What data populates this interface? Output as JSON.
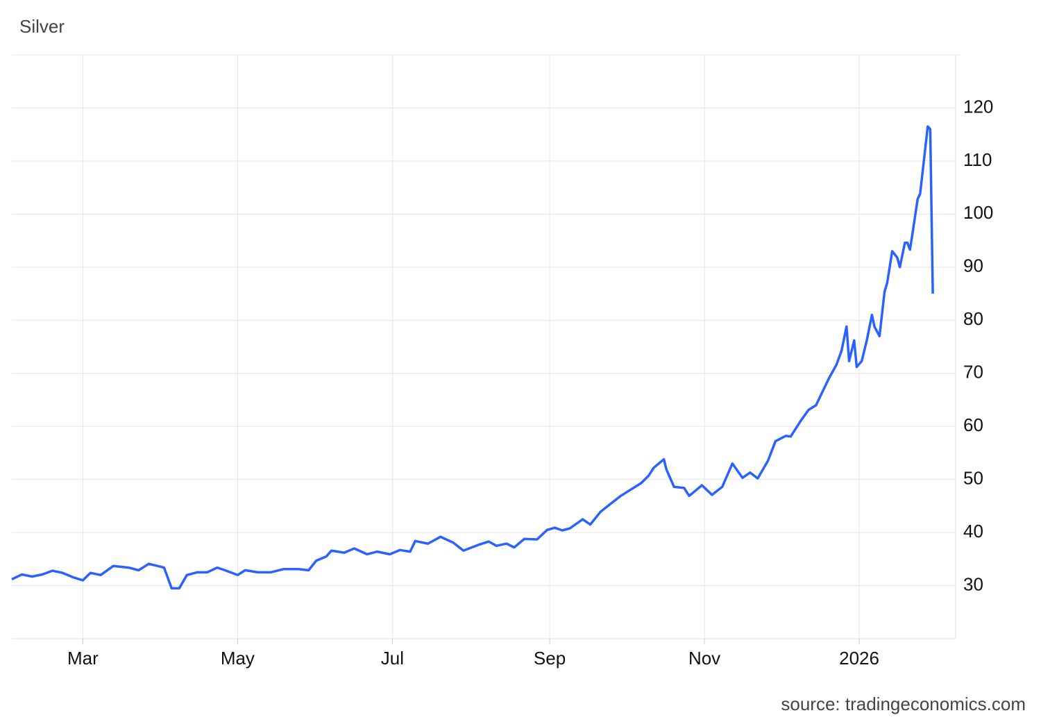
{
  "chart_data": {
    "type": "line",
    "title": "Silver",
    "source": "source: tradingeconomics.com",
    "x": [
      0,
      4,
      8,
      12,
      16,
      20,
      24,
      28,
      31,
      35,
      40,
      46,
      50,
      54,
      60,
      63,
      66,
      69,
      73,
      77,
      81,
      84,
      89,
      92,
      97,
      102,
      107,
      113,
      117,
      120,
      124,
      126,
      131,
      135,
      140,
      144,
      149,
      153,
      157,
      159,
      164,
      169,
      174,
      178,
      184,
      188,
      191,
      195,
      198,
      202,
      207,
      211,
      214,
      217,
      220,
      225,
      228,
      232,
      236,
      240,
      244,
      248,
      251,
      253,
      257,
      258,
      261,
      265,
      267,
      272,
      276,
      280,
      284,
      288,
      291,
      294,
      298,
      301,
      305,
      307,
      311,
      314,
      317,
      319,
      322,
      325,
      327,
      329,
      330,
      332,
      333,
      335,
      337,
      339,
      340,
      342,
      344,
      345,
      347,
      349,
      350,
      352,
      353,
      354,
      355,
      357,
      358,
      360,
      361,
      362,
      363
    ],
    "series": [
      {
        "name": "Silver",
        "color": "#2962ff",
        "values": [
          31.2,
          32.1,
          31.7,
          32.1,
          32.8,
          32.4,
          31.6,
          31.0,
          32.4,
          32.0,
          33.7,
          33.4,
          32.9,
          34.1,
          33.4,
          29.5,
          29.5,
          32.0,
          32.5,
          32.5,
          33.4,
          32.9,
          32.0,
          32.9,
          32.5,
          32.5,
          33.1,
          33.1,
          32.9,
          34.7,
          35.5,
          36.6,
          36.2,
          37.0,
          35.9,
          36.4,
          35.9,
          36.7,
          36.4,
          38.4,
          37.9,
          39.2,
          38.1,
          36.6,
          37.7,
          38.3,
          37.5,
          37.9,
          37.2,
          38.8,
          38.7,
          40.5,
          40.9,
          40.4,
          40.8,
          42.5,
          41.5,
          43.9,
          45.4,
          46.9,
          48.1,
          49.3,
          50.7,
          52.2,
          53.8,
          51.9,
          48.6,
          48.4,
          46.9,
          48.9,
          47.1,
          48.6,
          53.0,
          50.3,
          51.3,
          50.2,
          53.5,
          57.2,
          58.2,
          58.1,
          61.1,
          63.1,
          64.0,
          66.0,
          69.0,
          71.6,
          74.2,
          78.8,
          72.3,
          76.2,
          71.2,
          72.3,
          76.2,
          81.0,
          78.8,
          77.0,
          85.4,
          87.0,
          93.0,
          91.8,
          90.0,
          94.6,
          94.6,
          93.3,
          96.3,
          102.8,
          103.8,
          112.2,
          116.5,
          116.0,
          85.0
        ]
      }
    ],
    "xlim": [
      0,
      372
    ],
    "xticks": [
      {
        "value": 28,
        "label": "Mar"
      },
      {
        "value": 89,
        "label": "May"
      },
      {
        "value": 150,
        "label": "Jul"
      },
      {
        "value": 212,
        "label": "Sep"
      },
      {
        "value": 273,
        "label": "Nov"
      },
      {
        "value": 334,
        "label": "2026"
      }
    ],
    "ylim": [
      20,
      130
    ],
    "yticks": [
      30,
      40,
      50,
      60,
      70,
      80,
      90,
      100,
      110,
      120
    ],
    "grid": true
  }
}
